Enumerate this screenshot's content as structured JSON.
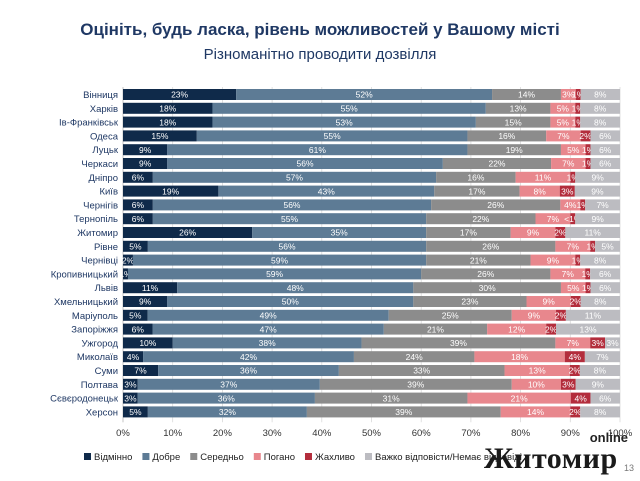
{
  "chart_data": {
    "type": "bar",
    "orientation": "horizontal",
    "stacked": true,
    "title": "Оцініть, будь ласка, рівень можливостей у Вашому місті",
    "subtitle": "Різноманітно проводити дозвілля",
    "categories": [
      "Вінниця",
      "Харків",
      "Ів-Франківськ",
      "Одеса",
      "Луцьк",
      "Черкаси",
      "Дніпро",
      "Київ",
      "Чернігів",
      "Тернопіль",
      "Житомир",
      "Рівне",
      "Чернівці",
      "Кропивницький",
      "Львів",
      "Хмельницький",
      "Маріуполь",
      "Запоріжжя",
      "Ужгород",
      "Миколаїв",
      "Суми",
      "Полтава",
      "Сєвєродонецьк",
      "Херсон"
    ],
    "series": [
      {
        "name": "Відмінно",
        "color": "#0f2a4a",
        "values": [
          23,
          18,
          18,
          15,
          9,
          9,
          6,
          19,
          6,
          6,
          26,
          5,
          2,
          1,
          11,
          9,
          5,
          6,
          10,
          4,
          7,
          3,
          3,
          5
        ],
        "labels": [
          "23%",
          "18%",
          "18%",
          "15%",
          "9%",
          "9%",
          "6%",
          "19%",
          "6%",
          "6%",
          "26%",
          "5%",
          "2%",
          "1%",
          "11%",
          "9%",
          "5%",
          "6%",
          "10%",
          "4%",
          "7%",
          "3%",
          "3%",
          "5%"
        ]
      },
      {
        "name": "Добре",
        "color": "#5d7b95",
        "values": [
          52,
          55,
          53,
          55,
          61,
          56,
          57,
          43,
          56,
          55,
          35,
          56,
          59,
          59,
          48,
          50,
          49,
          47,
          38,
          42,
          36,
          37,
          36,
          32
        ],
        "labels": [
          "52%",
          "55%",
          "53%",
          "55%",
          "61%",
          "56%",
          "57%",
          "43%",
          "56%",
          "55%",
          "35%",
          "56%",
          "59%",
          "59%",
          "48%",
          "50%",
          "49%",
          "47%",
          "38%",
          "42%",
          "36%",
          "37%",
          "36%",
          "32%"
        ]
      },
      {
        "name": "Середньо",
        "color": "#8c8c8c",
        "values": [
          14,
          13,
          15,
          16,
          19,
          22,
          16,
          17,
          26,
          22,
          17,
          26,
          21,
          26,
          30,
          23,
          25,
          21,
          39,
          24,
          33,
          39,
          31,
          39
        ],
        "labels": [
          "14%",
          "13%",
          "15%",
          "16%",
          "19%",
          "22%",
          "16%",
          "17%",
          "26%",
          "22%",
          "17%",
          "26%",
          "21%",
          "26%",
          "30%",
          "23%",
          "25%",
          "21%",
          "39%",
          "24%",
          "33%",
          "39%",
          "31%",
          "39%"
        ]
      },
      {
        "name": "Погано",
        "color": "#e8878d",
        "values": [
          3,
          5,
          5,
          7,
          5,
          7,
          11,
          8,
          4,
          7,
          9,
          7,
          9,
          7,
          5,
          9,
          9,
          12,
          7,
          18,
          13,
          10,
          21,
          14
        ],
        "labels": [
          "3%",
          "5%",
          "5%",
          "7%",
          "5%",
          "7%",
          "11%",
          "8%",
          "4%",
          "7%",
          "9%",
          "7%",
          "9%",
          "7%",
          "5%",
          "9%",
          "9%",
          "12%",
          "7%",
          "18%",
          "13%",
          "10%",
          "21%",
          "14%"
        ]
      },
      {
        "name": "Жахливо",
        "color": "#b32d3c",
        "values": [
          1,
          1,
          1,
          2,
          1,
          1,
          1,
          3,
          1,
          1,
          2,
          1,
          1,
          1,
          1,
          2,
          2,
          2,
          3,
          4,
          2,
          3,
          4,
          2
        ],
        "labels": [
          "1%",
          "1%",
          "1%",
          "2%",
          "1%",
          "1%",
          "1%",
          "3%",
          "1%",
          "<1%",
          "2%",
          "1%",
          "1%",
          "1%",
          "1%",
          "2%",
          "2%",
          "2%",
          "3%",
          "4%",
          "2%",
          "3%",
          "4%",
          "2%"
        ]
      },
      {
        "name": "Важко відповісти/Немає відповіді",
        "color": "#bcbcc1",
        "values": [
          8,
          8,
          8,
          6,
          6,
          6,
          9,
          9,
          7,
          9,
          11,
          5,
          8,
          6,
          6,
          8,
          11,
          13,
          3,
          7,
          8,
          9,
          6,
          8
        ],
        "labels": [
          "8%",
          "8%",
          "8%",
          "6%",
          "6%",
          "6%",
          "9%",
          "9%",
          "7%",
          "9%",
          "11%",
          "5%",
          "8%",
          "6%",
          "6%",
          "8%",
          "11%",
          "13%",
          "3%",
          "7%",
          "8%",
          "9%",
          "6%",
          "8%"
        ]
      }
    ],
    "xlim": [
      0,
      100
    ],
    "xticks": [
      "0%",
      "10%",
      "20%",
      "30%",
      "40%",
      "50%",
      "60%",
      "70%",
      "80%",
      "90%",
      "100%"
    ],
    "grid": true,
    "legend_position": "bottom"
  },
  "watermark": {
    "top": "online",
    "main": "Житомир"
  },
  "page_number": "13"
}
